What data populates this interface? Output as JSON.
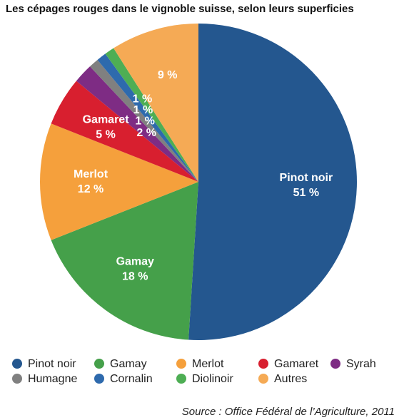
{
  "chart_data": {
    "type": "pie",
    "title": "Les cépages rouges dans le vignoble suisse, selon leurs superficies",
    "categories": [
      "Pinot noir",
      "Gamay",
      "Merlot",
      "Gamaret",
      "Syrah",
      "Humagne",
      "Cornalin",
      "Diolinoir",
      "Autres"
    ],
    "values": [
      51,
      18,
      12,
      5,
      2,
      1,
      1,
      1,
      9
    ],
    "value_labels": [
      "51 %",
      "18 %",
      "12 %",
      "5 %",
      "2 %",
      "1 %",
      "1 %",
      "1 %",
      "9 %"
    ],
    "name_in_slice": [
      true,
      true,
      true,
      true,
      false,
      false,
      false,
      false,
      false
    ],
    "colors": [
      "#24578f",
      "#45a04a",
      "#f5a03c",
      "#d81f2f",
      "#7e2c84",
      "#808080",
      "#2e6aad",
      "#4eae54",
      "#f5aa55"
    ],
    "source": "Source : Office Fédéral de l’Agriculture, 2011"
  }
}
